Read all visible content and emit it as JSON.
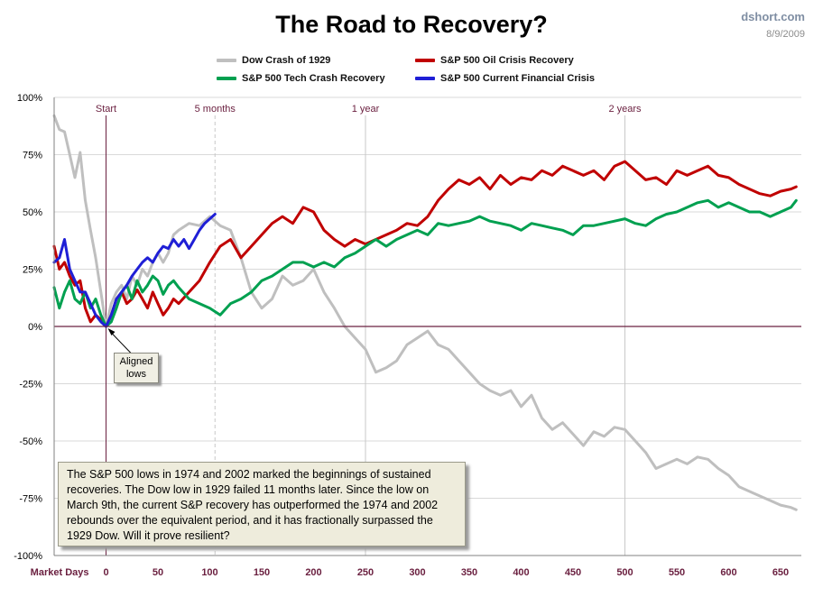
{
  "header": {
    "source": "dshort.com",
    "date": "8/9/2009"
  },
  "chart_data": {
    "type": "line",
    "title": "The Road to Recovery?",
    "xlabel": "Market Days",
    "ylabel": "",
    "xlim": [
      -50,
      670
    ],
    "ylim": [
      -100,
      100
    ],
    "grid": true,
    "legend_position": "top",
    "x_ticks": [
      0,
      50,
      100,
      150,
      200,
      250,
      300,
      350,
      400,
      450,
      500,
      550,
      600,
      650
    ],
    "y_ticks": [
      {
        "value": 100,
        "label": "100%"
      },
      {
        "value": 75,
        "label": "75%"
      },
      {
        "value": 50,
        "label": "50%"
      },
      {
        "value": 25,
        "label": "25%"
      },
      {
        "value": 0,
        "label": "0%"
      },
      {
        "value": -25,
        "label": "-25%"
      },
      {
        "value": -50,
        "label": "-50%"
      },
      {
        "value": -75,
        "label": "-75%"
      },
      {
        "value": -100,
        "label": "-100%"
      }
    ],
    "markers": [
      {
        "x": 0,
        "label": "Start"
      },
      {
        "x": 105,
        "label": "5 months"
      },
      {
        "x": 250,
        "label": "1 year"
      },
      {
        "x": 500,
        "label": "2 years"
      }
    ],
    "annotations": {
      "aligned_lows_line1": "Aligned",
      "aligned_lows_line2": "lows",
      "note": "The S&P 500  lows in 1974  and 2002  marked the beginnings of sustained recoveries. The Dow low in 1929  failed 11  months later.  Since the low on March 9th, the current S&P recovery has outperformed the 1974 and 2002 rebounds over the equivalent period, and it has fractionally surpassed the 1929 Dow. Will it prove resilient?"
    },
    "series": [
      {
        "name": "Dow Crash of 1929",
        "color": "#bfbfbf",
        "x": [
          -50,
          -45,
          -40,
          -35,
          -30,
          -25,
          -20,
          -15,
          -10,
          -5,
          0,
          5,
          10,
          15,
          20,
          25,
          30,
          35,
          40,
          45,
          50,
          55,
          60,
          65,
          70,
          80,
          90,
          100,
          110,
          120,
          130,
          140,
          150,
          160,
          170,
          180,
          190,
          200,
          210,
          220,
          230,
          240,
          250,
          260,
          270,
          280,
          290,
          300,
          310,
          320,
          330,
          340,
          350,
          360,
          370,
          380,
          390,
          400,
          410,
          420,
          430,
          440,
          450,
          460,
          470,
          480,
          490,
          500,
          510,
          520,
          530,
          540,
          550,
          560,
          570,
          580,
          590,
          600,
          610,
          620,
          630,
          640,
          650,
          660,
          665
        ],
        "values": [
          92,
          86,
          85,
          75,
          65,
          76,
          55,
          42,
          30,
          15,
          0,
          10,
          15,
          18,
          12,
          22,
          18,
          25,
          22,
          28,
          32,
          28,
          32,
          40,
          42,
          45,
          44,
          48,
          44,
          42,
          30,
          15,
          8,
          12,
          22,
          18,
          20,
          25,
          15,
          8,
          0,
          -5,
          -10,
          -20,
          -18,
          -15,
          -8,
          -5,
          -2,
          -8,
          -10,
          -15,
          -20,
          -25,
          -28,
          -30,
          -28,
          -35,
          -30,
          -40,
          -45,
          -42,
          -47,
          -52,
          -46,
          -48,
          -44,
          -45,
          -50,
          -55,
          -62,
          -60,
          -58,
          -60,
          -57,
          -58,
          -62,
          -65,
          -70,
          -72,
          -74,
          -76,
          -78,
          -79,
          -80
        ]
      },
      {
        "name": "S&P 500 Oil Crisis Recovery",
        "color": "#c00000",
        "x": [
          -50,
          -45,
          -40,
          -35,
          -30,
          -25,
          -20,
          -15,
          -10,
          -5,
          0,
          5,
          10,
          15,
          20,
          25,
          30,
          35,
          40,
          45,
          50,
          55,
          60,
          65,
          70,
          80,
          90,
          100,
          110,
          120,
          130,
          140,
          150,
          160,
          170,
          180,
          190,
          200,
          210,
          220,
          230,
          240,
          250,
          260,
          270,
          280,
          290,
          300,
          310,
          320,
          330,
          340,
          350,
          360,
          370,
          380,
          390,
          400,
          410,
          420,
          430,
          440,
          450,
          460,
          470,
          480,
          490,
          500,
          510,
          520,
          530,
          540,
          550,
          560,
          570,
          580,
          590,
          600,
          610,
          620,
          630,
          640,
          650,
          660,
          665
        ],
        "values": [
          35,
          25,
          28,
          22,
          18,
          20,
          8,
          2,
          5,
          3,
          0,
          5,
          12,
          15,
          10,
          12,
          16,
          12,
          8,
          15,
          10,
          5,
          8,
          12,
          10,
          15,
          20,
          28,
          35,
          38,
          30,
          35,
          40,
          45,
          48,
          45,
          52,
          50,
          42,
          38,
          35,
          38,
          36,
          38,
          40,
          42,
          45,
          44,
          48,
          55,
          60,
          64,
          62,
          65,
          60,
          66,
          62,
          65,
          64,
          68,
          66,
          70,
          68,
          66,
          68,
          64,
          70,
          72,
          68,
          64,
          65,
          62,
          68,
          66,
          68,
          70,
          66,
          65,
          62,
          60,
          58,
          57,
          59,
          60,
          61
        ]
      },
      {
        "name": "S&P 500 Tech Crash Recovery",
        "color": "#00a050",
        "x": [
          -50,
          -45,
          -40,
          -35,
          -30,
          -25,
          -20,
          -15,
          -10,
          -5,
          0,
          5,
          10,
          15,
          20,
          25,
          30,
          35,
          40,
          45,
          50,
          55,
          60,
          65,
          70,
          80,
          90,
          100,
          110,
          120,
          130,
          140,
          150,
          160,
          170,
          180,
          190,
          200,
          210,
          220,
          230,
          240,
          250,
          260,
          270,
          280,
          290,
          300,
          310,
          320,
          330,
          340,
          350,
          360,
          370,
          380,
          390,
          400,
          410,
          420,
          430,
          440,
          450,
          460,
          470,
          480,
          490,
          500,
          510,
          520,
          530,
          540,
          550,
          560,
          570,
          580,
          590,
          600,
          610,
          620,
          630,
          640,
          650,
          660,
          665
        ],
        "values": [
          17,
          8,
          15,
          20,
          12,
          10,
          15,
          8,
          12,
          5,
          0,
          2,
          8,
          15,
          18,
          12,
          20,
          15,
          18,
          22,
          20,
          14,
          18,
          20,
          17,
          12,
          10,
          8,
          5,
          10,
          12,
          15,
          20,
          22,
          25,
          28,
          28,
          26,
          28,
          26,
          30,
          32,
          35,
          38,
          35,
          38,
          40,
          42,
          40,
          45,
          44,
          45,
          46,
          48,
          46,
          45,
          44,
          42,
          45,
          44,
          43,
          42,
          40,
          44,
          44,
          45,
          46,
          47,
          45,
          44,
          47,
          49,
          50,
          52,
          54,
          55,
          52,
          54,
          52,
          50,
          50,
          48,
          50,
          52,
          55
        ]
      },
      {
        "name": "S&P 500 Current Financial  Crisis",
        "color": "#1f1fd6",
        "x": [
          -50,
          -45,
          -40,
          -35,
          -30,
          -25,
          -20,
          -15,
          -10,
          -5,
          0,
          5,
          10,
          15,
          20,
          25,
          30,
          35,
          40,
          45,
          50,
          55,
          60,
          65,
          70,
          75,
          80,
          85,
          90,
          95,
          100,
          105
        ],
        "values": [
          28,
          30,
          38,
          25,
          20,
          15,
          15,
          10,
          5,
          2,
          0,
          5,
          12,
          15,
          18,
          22,
          25,
          28,
          30,
          28,
          32,
          35,
          34,
          38,
          35,
          38,
          34,
          38,
          42,
          45,
          47,
          49
        ]
      }
    ]
  }
}
